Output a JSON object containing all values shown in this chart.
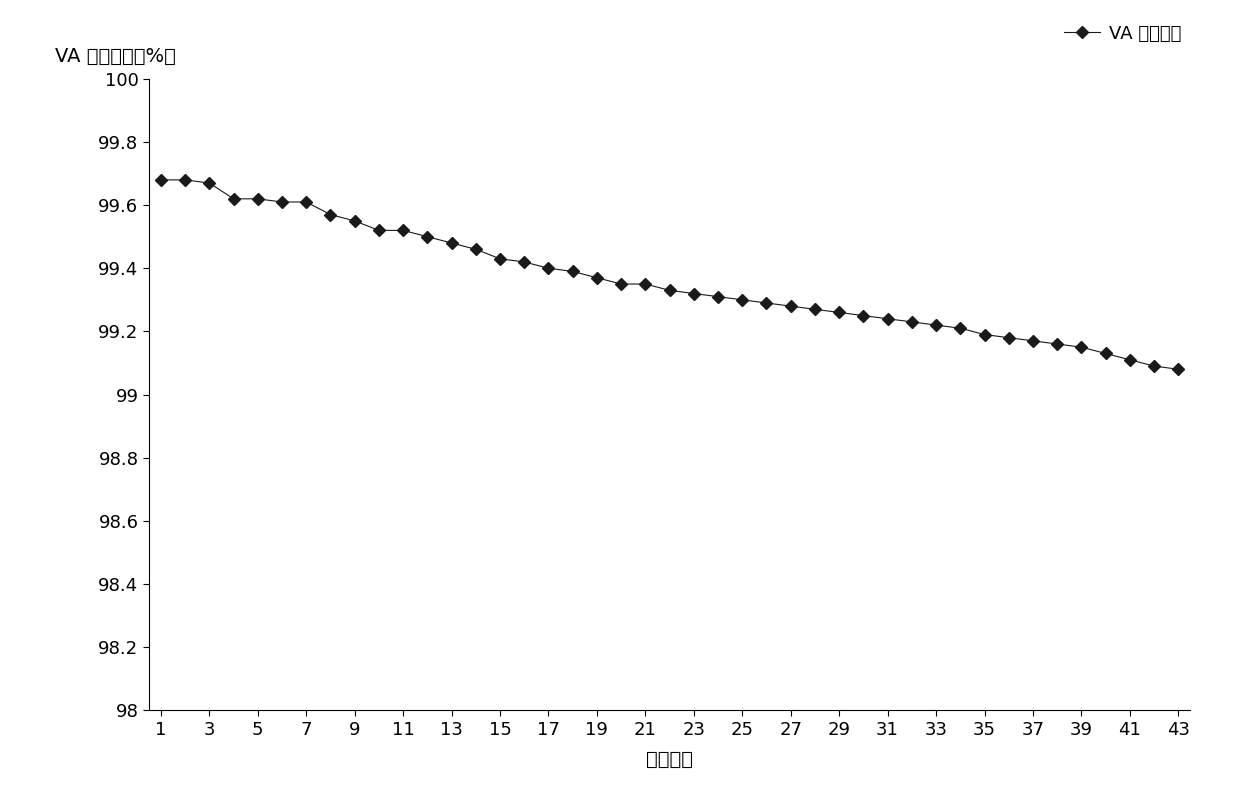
{
  "x": [
    1,
    2,
    3,
    4,
    5,
    6,
    7,
    8,
    9,
    10,
    11,
    12,
    13,
    14,
    15,
    16,
    17,
    18,
    19,
    20,
    21,
    22,
    23,
    24,
    25,
    26,
    27,
    28,
    29,
    30,
    31,
    32,
    33,
    34,
    35,
    36,
    37,
    38,
    39,
    40,
    41,
    42,
    43
  ],
  "y": [
    99.68,
    99.68,
    99.67,
    99.62,
    99.62,
    99.61,
    99.61,
    99.57,
    99.55,
    99.52,
    99.52,
    99.5,
    99.48,
    99.46,
    99.43,
    99.42,
    99.4,
    99.39,
    99.37,
    99.35,
    99.35,
    99.33,
    99.32,
    99.31,
    99.3,
    99.29,
    99.28,
    99.27,
    99.26,
    99.25,
    99.24,
    99.23,
    99.22,
    99.21,
    99.19,
    99.18,
    99.17,
    99.16,
    99.15,
    99.13,
    99.11,
    99.09,
    99.08
  ],
  "ylabel": "VA 醇转化率（%）",
  "xlabel": "套用批次",
  "legend_label": "VA 醇转化率",
  "ylim_min": 98,
  "ylim_max": 100,
  "yticks": [
    98,
    98.2,
    98.4,
    98.6,
    98.8,
    99,
    99.2,
    99.4,
    99.6,
    99.8,
    100
  ],
  "ytick_labels": [
    "98",
    "98.2",
    "98.4",
    "98.6",
    "98.8",
    "99",
    "99.2",
    "99.4",
    "99.6",
    "99.8",
    "100"
  ],
  "xticks": [
    1,
    3,
    5,
    7,
    9,
    11,
    13,
    15,
    17,
    19,
    21,
    23,
    25,
    27,
    29,
    31,
    33,
    35,
    37,
    39,
    41,
    43
  ],
  "line_color": "#1a1a1a",
  "marker": "D",
  "marker_color": "#1a1a1a",
  "marker_size": 6,
  "line_width": 0.8,
  "background_color": "#ffffff",
  "font_size_ticks": 13,
  "font_size_label": 14,
  "font_size_legend": 13
}
